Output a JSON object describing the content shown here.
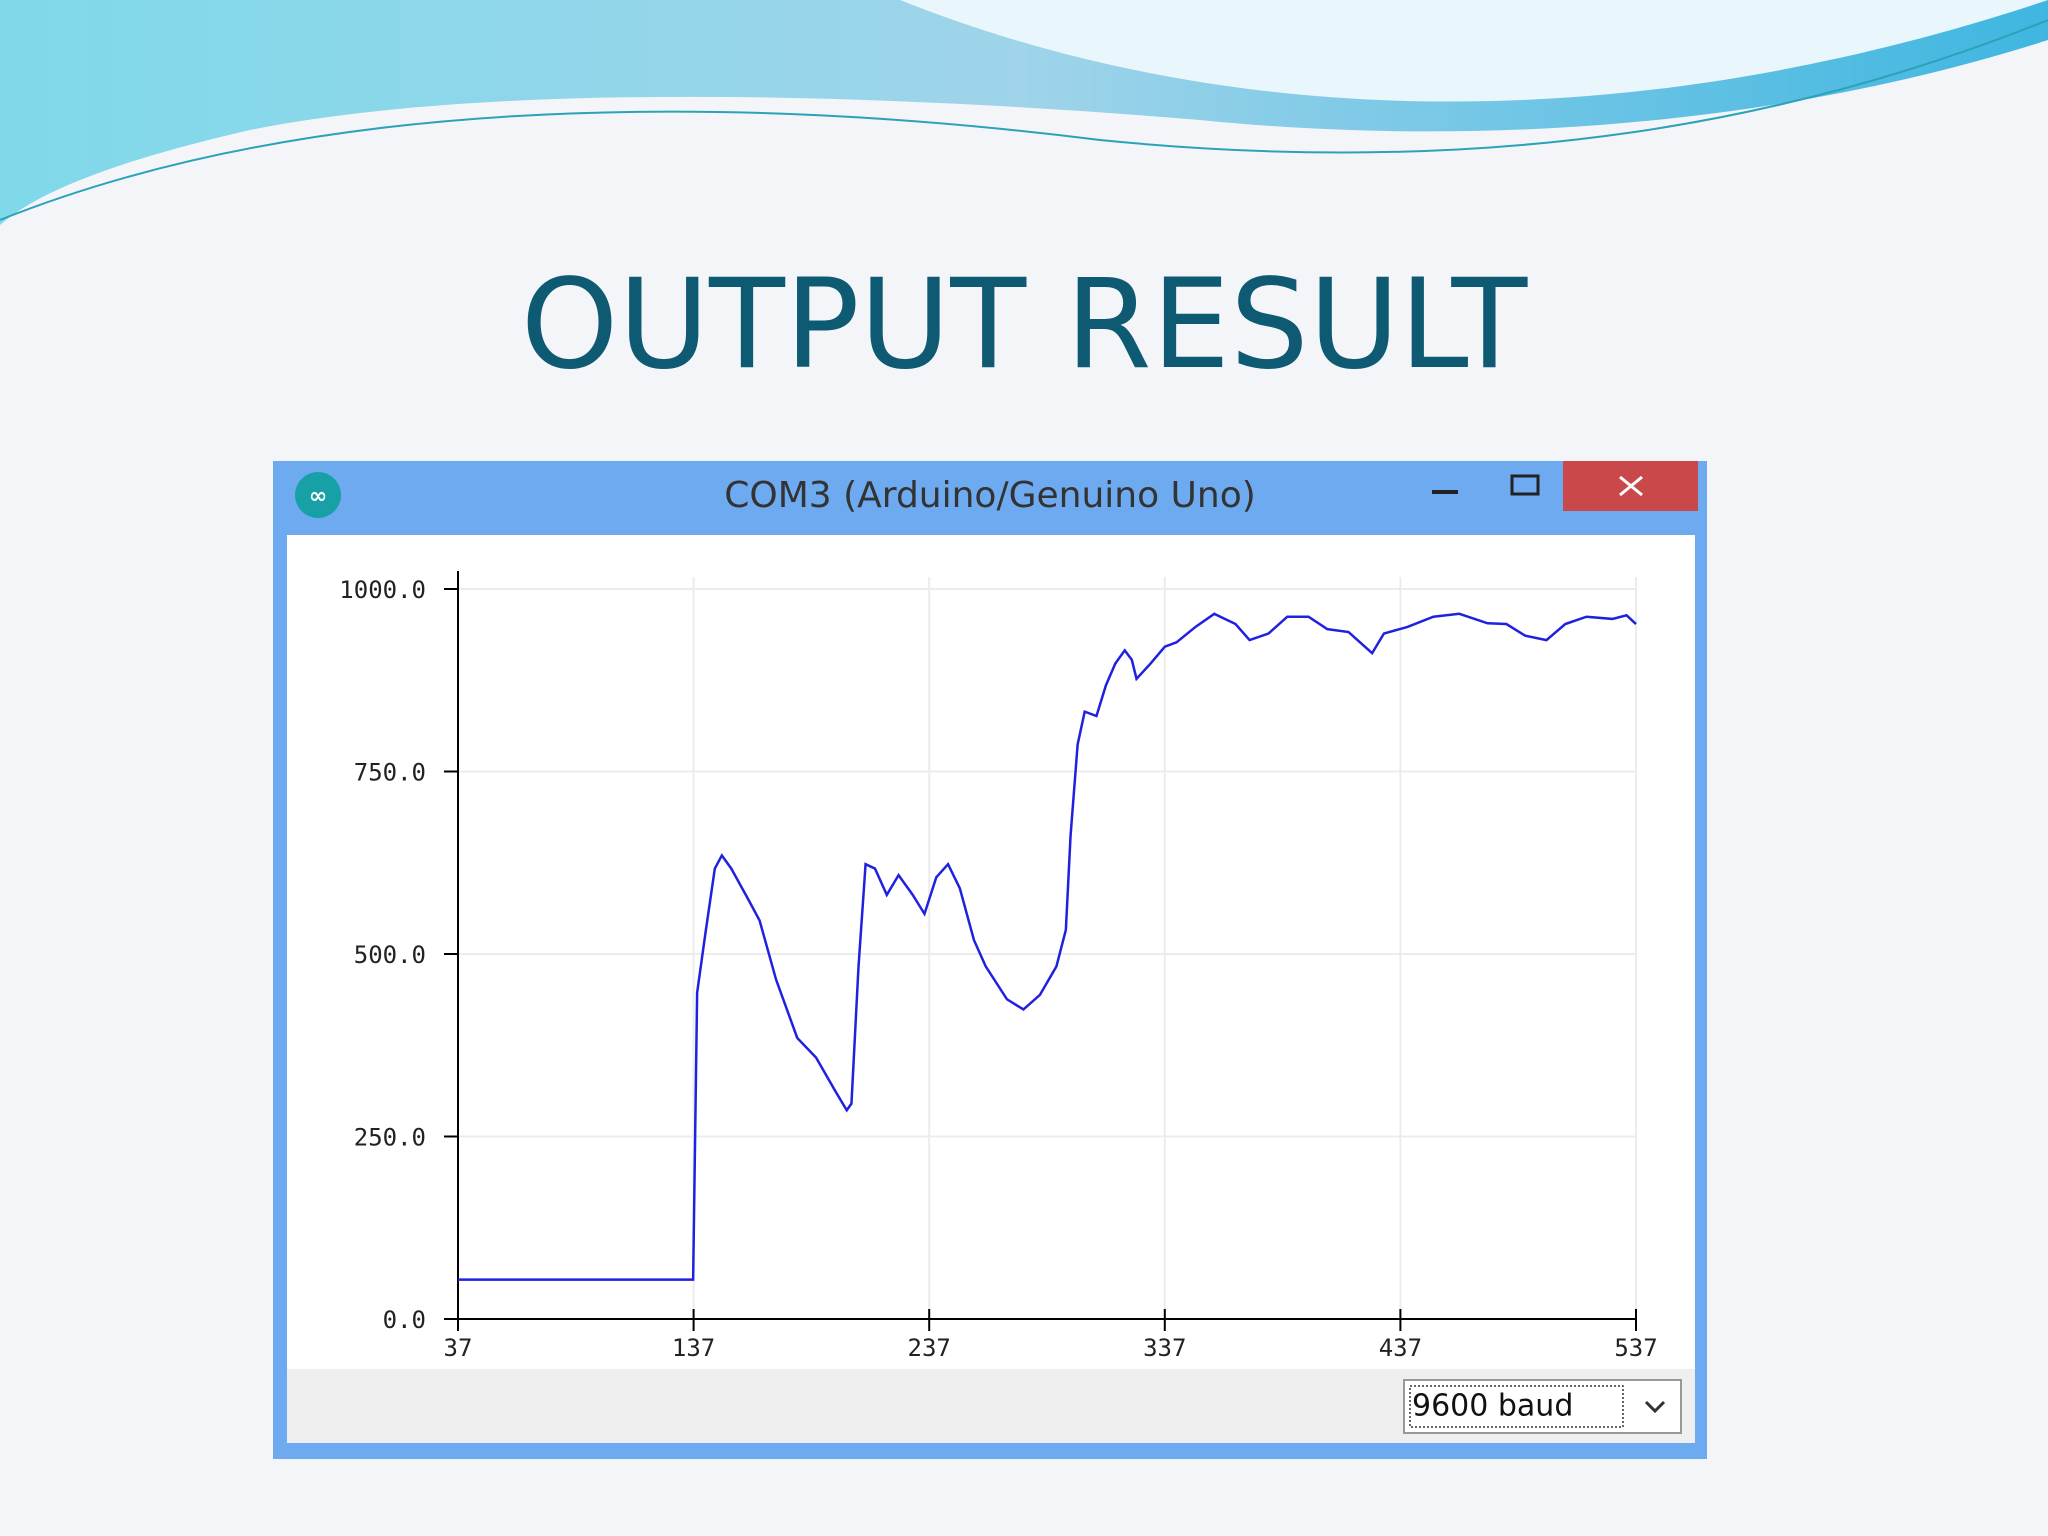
{
  "slide_title": "OUTPUT RESULT",
  "window_title": "COM3 (Arduino/Genuino Uno)",
  "baud": "9600 baud",
  "chart_data": {
    "type": "line",
    "x": [
      37,
      136.8,
      138.5,
      142,
      146,
      149,
      153,
      160,
      165,
      172,
      181,
      189,
      197,
      202,
      204,
      207,
      210,
      214,
      219,
      224,
      230,
      235,
      240,
      245,
      250,
      256,
      261,
      270,
      277,
      284,
      291,
      295,
      297,
      300,
      303,
      308,
      312,
      316,
      320,
      323,
      325,
      331,
      337,
      342,
      350,
      358,
      367,
      373,
      381,
      389,
      398,
      406,
      415,
      425,
      430,
      440,
      451,
      462,
      474,
      482,
      490,
      499,
      507,
      516,
      527,
      533,
      537
    ],
    "series": [
      {
        "color": "#2020e0",
        "values": [
          54,
          54,
          447,
          528,
          617,
          635,
          617,
          576,
          546,
          465,
          385,
          358,
          313,
          286,
          295,
          483,
          623,
          617,
          581,
          608,
          581,
          555,
          605,
          623,
          590,
          519,
          483,
          438,
          424,
          444,
          483,
          533,
          662,
          787,
          832,
          826,
          868,
          898,
          916,
          903,
          877,
          898,
          921,
          927,
          948,
          966,
          952,
          930,
          939,
          962,
          962,
          945,
          941,
          912,
          939,
          948,
          962,
          966,
          953,
          952,
          936,
          930,
          952,
          962,
          959,
          964,
          952
        ]
      }
    ],
    "xlim": [
      37,
      537
    ],
    "ylim": [
      0,
      1000
    ],
    "xticks": [
      37,
      137,
      237,
      337,
      437,
      537
    ],
    "yticks": [
      {
        "value": 0,
        "label": "0.0"
      },
      {
        "value": 250,
        "label": "250.0"
      },
      {
        "value": 500,
        "label": "500.0"
      },
      {
        "value": 750,
        "label": "750.0"
      },
      {
        "value": 1000,
        "label": "1000.0"
      }
    ],
    "grid": true
  }
}
